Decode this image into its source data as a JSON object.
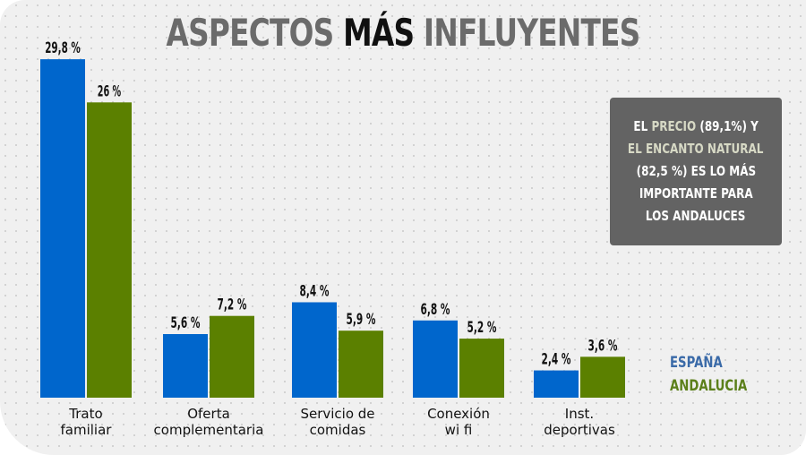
{
  "title": {
    "part1": "ASPECTOS ",
    "emphasis": "MÁS",
    "part2": " INFLUYENTES"
  },
  "callout": {
    "line1_a": "EL ",
    "line1_hl": "PRECIO",
    "line1_b": " (89,1%) Y",
    "line2_hl": "EL ENCANTO NATURAL",
    "line3": "(82,5 %) ES LO MÁS",
    "line4": "IMPORTANTE PARA",
    "line5": "LOS ANDALUCES"
  },
  "legend": [
    {
      "label": "ESPAÑA",
      "color": "#3a6aa8"
    },
    {
      "label": "ANDALUCIA",
      "color": "#5b7f1a"
    }
  ],
  "chart_data": {
    "type": "bar",
    "title": "ASPECTOS MÁS INFLUYENTES",
    "xlabel": "",
    "ylabel": "",
    "ylim": [
      0,
      30
    ],
    "grid": false,
    "legend_position": "right",
    "categories": [
      [
        "Trato",
        "familiar"
      ],
      [
        "Oferta",
        "complementaria"
      ],
      [
        "Servicio de",
        "comidas"
      ],
      [
        "Conexión",
        "wi fi"
      ],
      [
        "Inst.",
        "deportivas"
      ]
    ],
    "series": [
      {
        "name": "ESPAÑA",
        "color": "#0066cc",
        "values": [
          29.8,
          5.6,
          8.4,
          6.8,
          2.4
        ],
        "labels": [
          "29,8 %",
          "5,6 %",
          "8,4 %",
          "6,8 %",
          "2,4 %"
        ]
      },
      {
        "name": "ANDALUCIA",
        "color": "#5b8000",
        "values": [
          26,
          7.2,
          5.9,
          5.2,
          3.6
        ],
        "labels": [
          "26 %",
          "7,2 %",
          "5,9 %",
          "5,2 %",
          "3,6 %"
        ]
      }
    ]
  }
}
